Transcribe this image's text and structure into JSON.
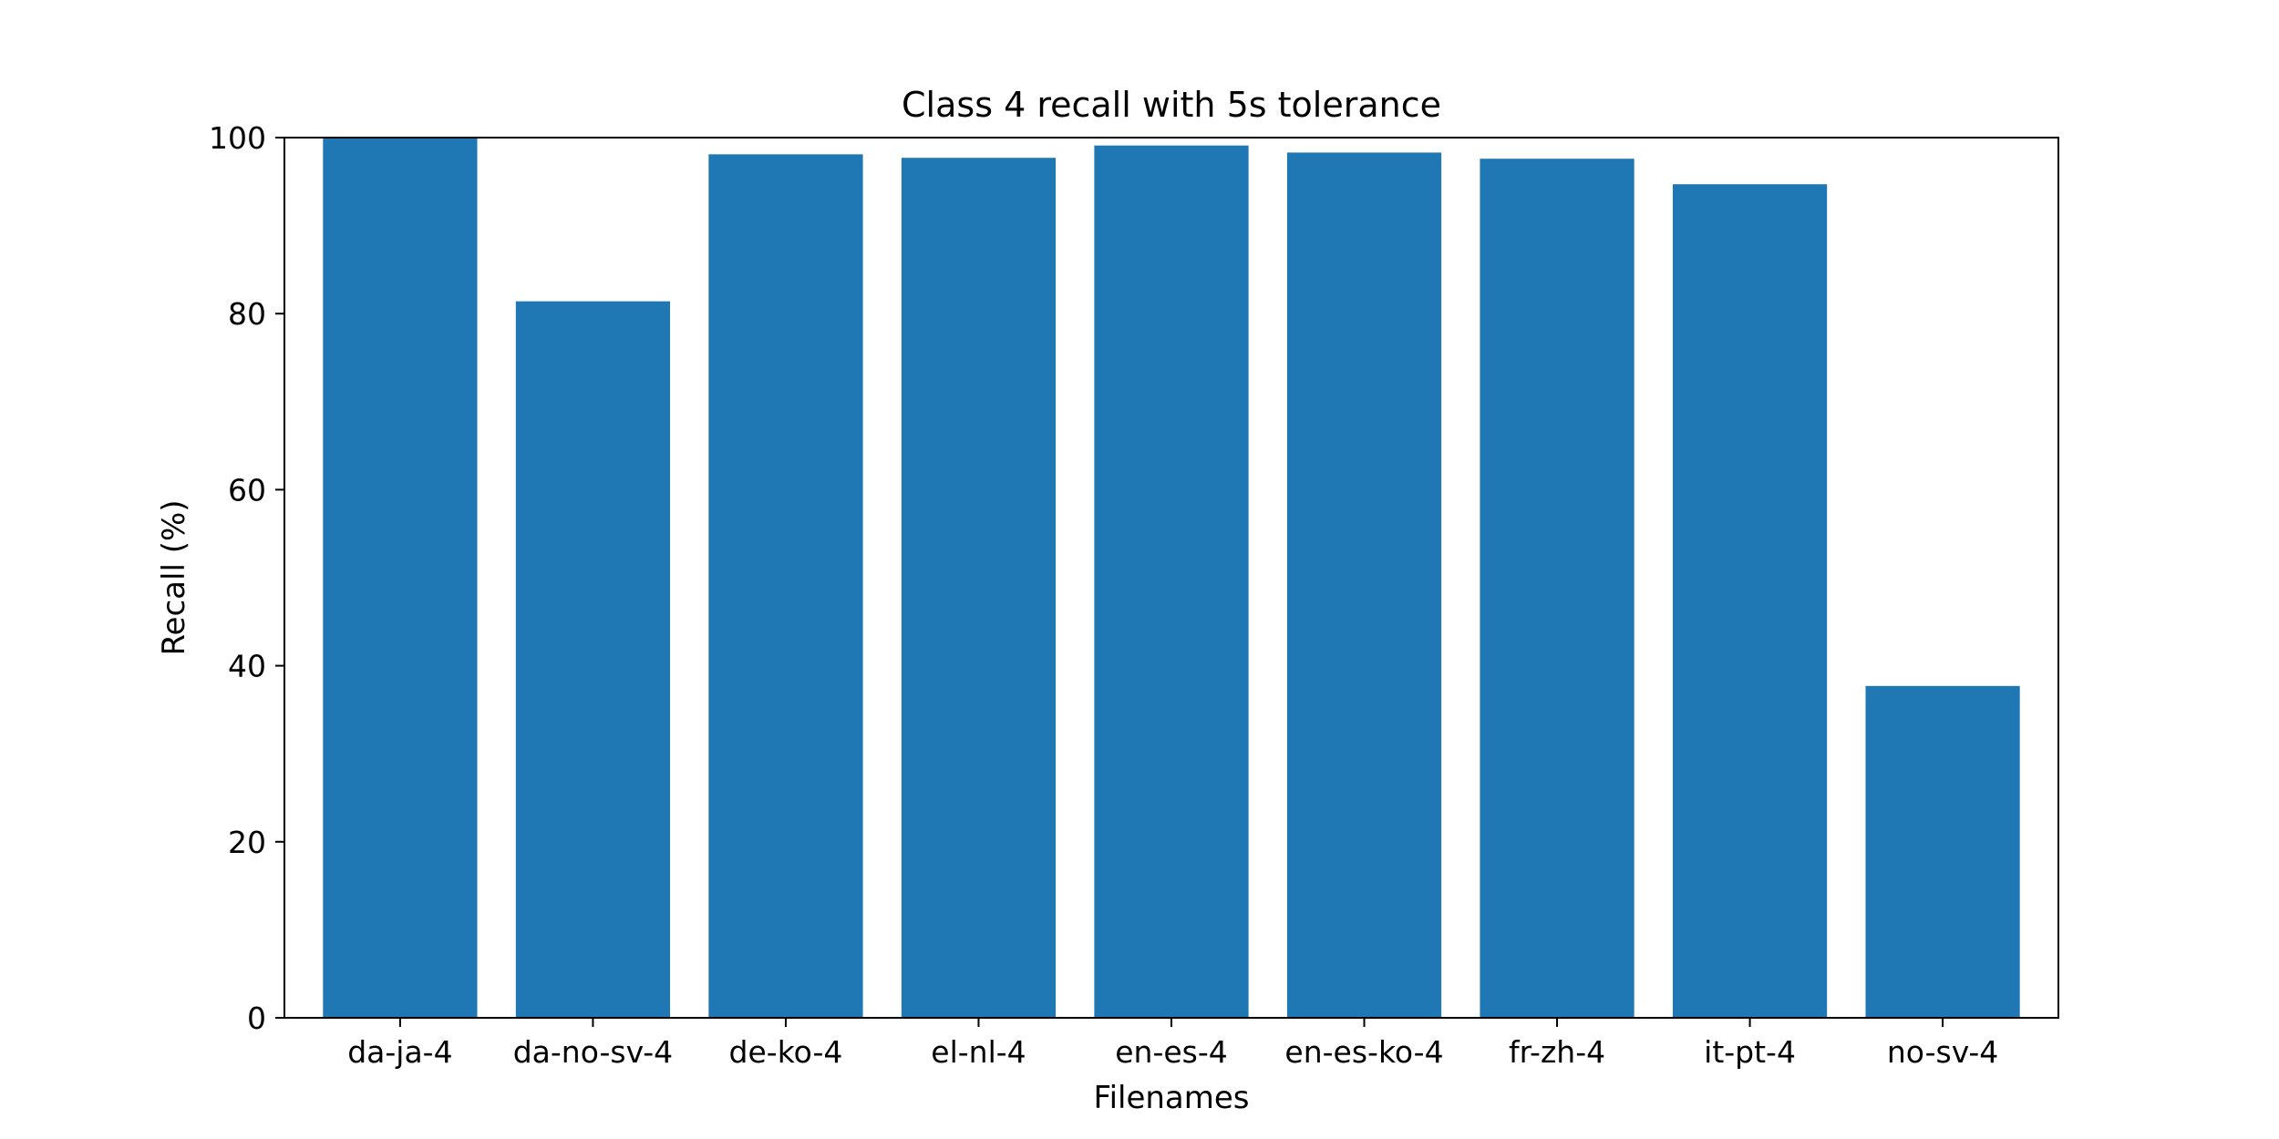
{
  "chart_data": {
    "type": "bar",
    "title": "Class 4 recall with 5s tolerance",
    "xlabel": "Filenames",
    "ylabel": "Recall (%)",
    "categories": [
      "da-ja-4",
      "da-no-sv-4",
      "de-ko-4",
      "el-nl-4",
      "en-es-4",
      "en-es-ko-4",
      "fr-zh-4",
      "it-pt-4",
      "no-sv-4"
    ],
    "values": [
      100.0,
      81.4,
      98.1,
      97.7,
      99.1,
      98.3,
      97.6,
      94.7,
      37.7
    ],
    "ylim": [
      0,
      100
    ],
    "yticks": [
      0,
      20,
      40,
      60,
      80,
      100
    ],
    "grid": false,
    "bar_color": "#1f77b4"
  }
}
